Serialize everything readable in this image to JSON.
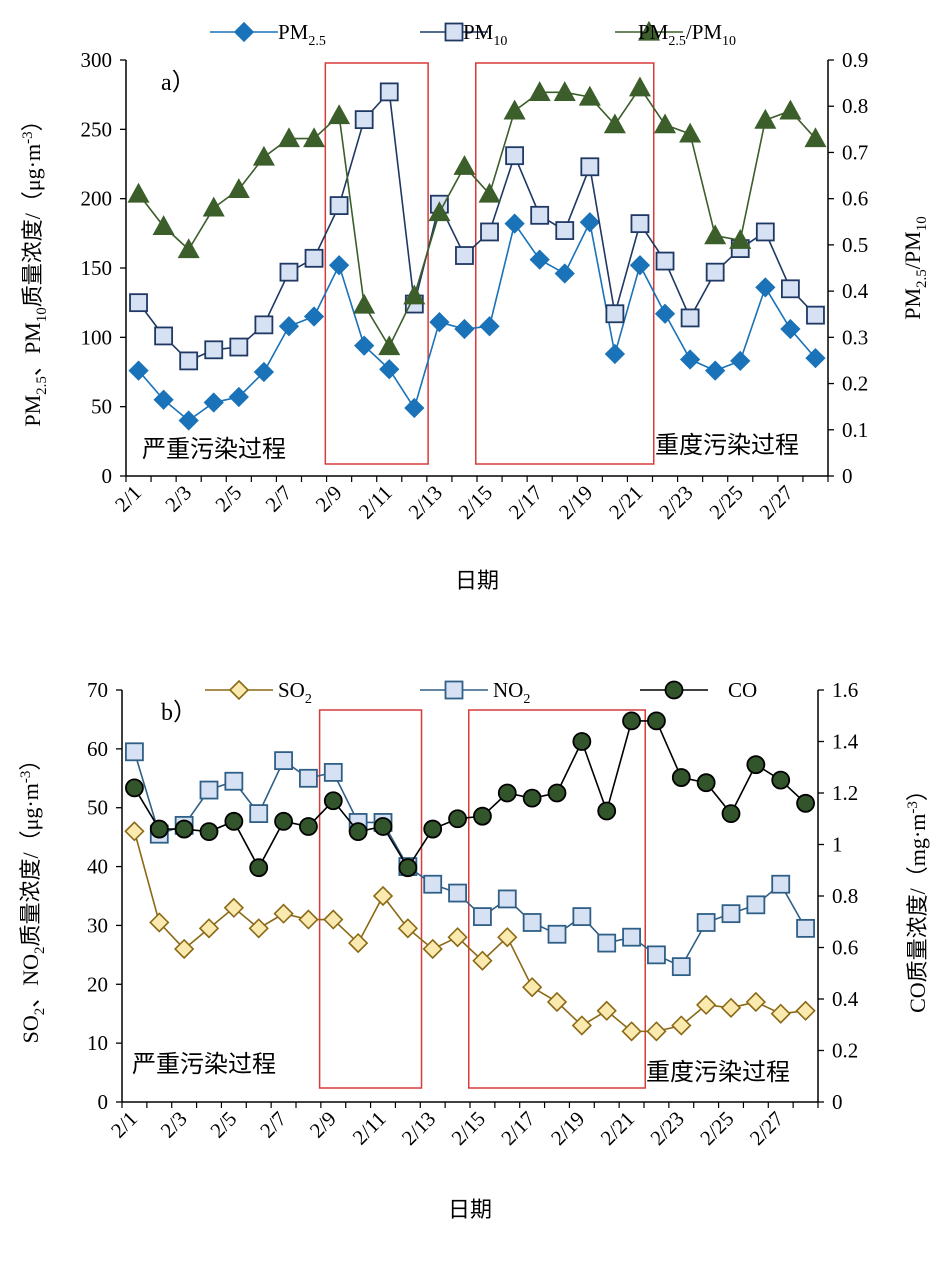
{
  "chart_data": [
    {
      "type": "line",
      "panel_label": "a）",
      "xlabel": "日期",
      "ylabel_left": "PM2.5、PM10质量浓度/（μg·m-3）",
      "ylabel_right": "PM2.5/PM10",
      "ylim_left": [
        0,
        300
      ],
      "ylim_right": [
        0,
        0.9
      ],
      "x": [
        "2/1",
        "2/2",
        "2/3",
        "2/4",
        "2/5",
        "2/6",
        "2/7",
        "2/8",
        "2/9",
        "2/10",
        "2/11",
        "2/12",
        "2/13",
        "2/14",
        "2/15",
        "2/16",
        "2/17",
        "2/18",
        "2/19",
        "2/20",
        "2/21",
        "2/22",
        "2/23",
        "2/24",
        "2/25",
        "2/26",
        "2/27",
        "2/28"
      ],
      "x_tick_labels": [
        "2/1",
        "2/3",
        "2/5",
        "2/7",
        "2/9",
        "2/11",
        "2/13",
        "2/15",
        "2/17",
        "2/19",
        "2/21",
        "2/23",
        "2/25",
        "2/27"
      ],
      "y_ticks_left": [
        "0",
        "50",
        "100",
        "150",
        "200",
        "250",
        "300"
      ],
      "y_ticks_right": [
        "0",
        "0.1",
        "0.2",
        "0.3",
        "0.4",
        "0.5",
        "0.6",
        "0.7",
        "0.8",
        "0.9"
      ],
      "annotations": [
        "严重污染过程",
        "重度污染过程"
      ],
      "highlight_ranges": [
        [
          "2/9",
          "2/12"
        ],
        [
          "2/15",
          "2/21"
        ]
      ],
      "series": [
        {
          "name": "PM2.5",
          "axis": "left",
          "marker": "diamond",
          "color": "#1a72b8",
          "values": [
            76,
            55,
            40,
            53,
            57,
            75,
            108,
            115,
            152,
            94,
            77,
            49,
            111,
            106,
            108,
            182,
            156,
            146,
            183,
            88,
            152,
            117,
            84,
            76,
            83,
            136,
            106,
            85
          ]
        },
        {
          "name": "PM10",
          "axis": "left",
          "marker": "square",
          "color": "#1f3864",
          "fill": "#d6e2f3",
          "values": [
            125,
            101,
            83,
            91,
            93,
            109,
            147,
            157,
            195,
            257,
            277,
            124,
            196,
            159,
            176,
            231,
            188,
            177,
            223,
            117,
            182,
            155,
            114,
            147,
            164,
            176,
            135,
            116
          ]
        },
        {
          "name": "PM2.5/PM10",
          "axis": "right",
          "marker": "triangle",
          "color": "#3b5e2b",
          "values": [
            0.61,
            0.54,
            0.49,
            0.58,
            0.62,
            0.69,
            0.73,
            0.73,
            0.78,
            0.37,
            0.28,
            0.39,
            0.57,
            0.67,
            0.61,
            0.79,
            0.83,
            0.83,
            0.82,
            0.76,
            0.84,
            0.76,
            0.74,
            0.52,
            0.51,
            0.77,
            0.79,
            0.73
          ]
        }
      ]
    },
    {
      "type": "line",
      "panel_label": "b）",
      "xlabel": "日期",
      "ylabel_left": "SO2、NO2质量浓度/（μg·m-3）",
      "ylabel_right": "CO质量浓度/（mg·m-3）",
      "ylim_left": [
        0,
        70
      ],
      "ylim_right": [
        0,
        1.6
      ],
      "x": [
        "2/1",
        "2/2",
        "2/3",
        "2/4",
        "2/5",
        "2/6",
        "2/7",
        "2/8",
        "2/9",
        "2/10",
        "2/11",
        "2/12",
        "2/13",
        "2/14",
        "2/15",
        "2/16",
        "2/17",
        "2/18",
        "2/19",
        "2/20",
        "2/21",
        "2/22",
        "2/23",
        "2/24",
        "2/25",
        "2/26",
        "2/27",
        "2/28"
      ],
      "x_tick_labels": [
        "2/1",
        "2/3",
        "2/5",
        "2/7",
        "2/9",
        "2/11",
        "2/13",
        "2/15",
        "2/17",
        "2/19",
        "2/21",
        "2/23",
        "2/25",
        "2/27"
      ],
      "y_ticks_left": [
        "0",
        "10",
        "20",
        "30",
        "40",
        "50",
        "60",
        "70"
      ],
      "y_ticks_right": [
        "0",
        "0.2",
        "0.4",
        "0.6",
        "0.8",
        "1",
        "1.2",
        "1.4",
        "1.6"
      ],
      "annotations": [
        "严重污染过程",
        "重度污染过程"
      ],
      "highlight_ranges": [
        [
          "2/9",
          "2/12"
        ],
        [
          "2/15",
          "2/21"
        ]
      ],
      "series": [
        {
          "name": "SO2",
          "axis": "left",
          "marker": "diamond",
          "color": "#8b6914",
          "fill": "#fbeab0",
          "values": [
            46,
            30.5,
            26,
            29.5,
            33,
            29.5,
            32,
            31,
            31,
            27,
            35,
            29.5,
            26,
            28,
            24,
            28,
            19.5,
            17,
            13,
            15.5,
            12,
            12,
            13,
            16.5,
            16,
            17,
            15,
            15.5
          ]
        },
        {
          "name": "NO2",
          "axis": "left",
          "marker": "square",
          "color": "#2f5f86",
          "fill": "#d6e2f3",
          "values": [
            59.5,
            45.5,
            47,
            53,
            54.5,
            49,
            58,
            55,
            56,
            47.5,
            47.5,
            40,
            37,
            35.5,
            31.5,
            34.5,
            30.5,
            28.5,
            31.5,
            27,
            28,
            25,
            23,
            30.5,
            32,
            33.5,
            37,
            29.5
          ]
        },
        {
          "name": "CO",
          "axis": "right",
          "marker": "circle",
          "color": "#000000",
          "fill": "#33552b",
          "values": [
            1.22,
            1.06,
            1.06,
            1.05,
            1.09,
            0.91,
            1.09,
            1.07,
            1.17,
            1.05,
            1.07,
            0.91,
            1.06,
            1.1,
            1.11,
            1.2,
            1.18,
            1.2,
            1.4,
            1.13,
            1.48,
            1.48,
            1.26,
            1.24,
            1.12,
            1.31,
            1.25,
            1.16
          ]
        }
      ]
    }
  ]
}
